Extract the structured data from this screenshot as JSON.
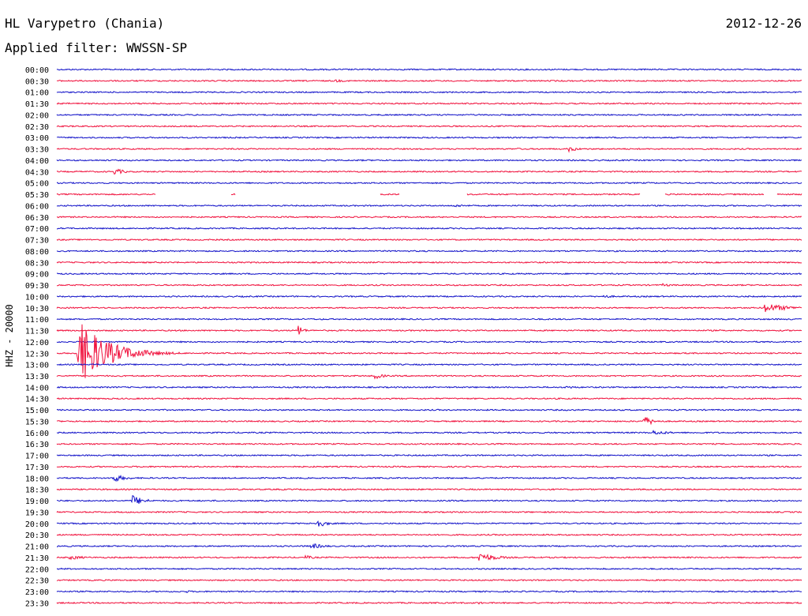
{
  "header": {
    "station": "HL Varypetro (Chania)",
    "date": "2012-12-26",
    "filter": "Applied filter: WWSSN-SP"
  },
  "axis": {
    "ylabel": "HHZ - 20000"
  },
  "colors": {
    "blue": "#1010c8",
    "red": "#f0103c"
  },
  "chart_data": {
    "type": "line",
    "title": "HL Varypetro (Chania)",
    "subtitle": "Applied filter: WWSSN-SP",
    "ylabel": "HHZ - 20000",
    "xlim_minutes": [
      0,
      30
    ],
    "rows": [
      "00:00",
      "00:30",
      "01:00",
      "01:30",
      "02:00",
      "02:30",
      "03:00",
      "03:30",
      "04:00",
      "04:30",
      "05:00",
      "05:30",
      "06:00",
      "06:30",
      "07:00",
      "07:30",
      "08:00",
      "08:30",
      "09:00",
      "09:30",
      "10:00",
      "10:30",
      "11:00",
      "11:30",
      "12:00",
      "12:30",
      "13:00",
      "13:30",
      "14:00",
      "14:30",
      "15:00",
      "15:30",
      "16:00",
      "16:30",
      "17:00",
      "17:30",
      "18:00",
      "18:30",
      "19:00",
      "19:30",
      "20:00",
      "20:30",
      "21:00",
      "21:30",
      "22:00",
      "22:30",
      "23:00",
      "23:30"
    ],
    "events": [
      {
        "row": 1,
        "minute": 11.2,
        "amp": 2,
        "dur": 0.8
      },
      {
        "row": 1,
        "minute": 13.0,
        "amp": 1,
        "dur": 0.3
      },
      {
        "row": 7,
        "minute": 20.6,
        "amp": 4,
        "dur": 0.6
      },
      {
        "row": 7,
        "minute": 18.5,
        "amp": 1.5,
        "dur": 0.5
      },
      {
        "row": 9,
        "minute": 2.3,
        "amp": 5,
        "dur": 0.6
      },
      {
        "row": 12,
        "minute": 16.0,
        "amp": 2,
        "dur": 1.2
      },
      {
        "row": 19,
        "minute": 24.4,
        "amp": 2,
        "dur": 0.8
      },
      {
        "row": 20,
        "minute": 22.0,
        "amp": 2,
        "dur": 1.0
      },
      {
        "row": 21,
        "minute": 28.5,
        "amp": 6,
        "dur": 1.5
      },
      {
        "row": 23,
        "minute": 9.7,
        "amp": 9,
        "dur": 0.3
      },
      {
        "row": 25,
        "minute": 0.8,
        "amp": 45,
        "dur": 1.8
      },
      {
        "row": 27,
        "minute": 12.8,
        "amp": 5,
        "dur": 0.5
      },
      {
        "row": 28,
        "minute": 20.5,
        "amp": 2,
        "dur": 1.0
      },
      {
        "row": 31,
        "minute": 23.6,
        "amp": 8,
        "dur": 0.6
      },
      {
        "row": 32,
        "minute": 24.0,
        "amp": 3,
        "dur": 1.2
      },
      {
        "row": 36,
        "minute": 2.2,
        "amp": 6,
        "dur": 0.8
      },
      {
        "row": 38,
        "minute": 3.0,
        "amp": 8,
        "dur": 0.7
      },
      {
        "row": 40,
        "minute": 10.4,
        "amp": 7,
        "dur": 0.6
      },
      {
        "row": 42,
        "minute": 10.2,
        "amp": 4,
        "dur": 0.9
      },
      {
        "row": 43,
        "minute": 17.0,
        "amp": 7,
        "dur": 1.0
      },
      {
        "row": 43,
        "minute": 10.0,
        "amp": 3,
        "dur": 0.6
      },
      {
        "row": 43,
        "minute": 0.5,
        "amp": 3,
        "dur": 1.0
      },
      {
        "row": 46,
        "minute": 5.2,
        "amp": 2,
        "dur": 0.4
      },
      {
        "row": 47,
        "minute": 17.0,
        "amp": 2,
        "dur": 0.3
      }
    ],
    "gaps": [
      {
        "row": 11,
        "from": 4.0,
        "to": 7.0
      },
      {
        "row": 11,
        "from": 7.2,
        "to": 13.0
      },
      {
        "row": 11,
        "from": 13.8,
        "to": 16.5
      },
      {
        "row": 11,
        "from": 23.5,
        "to": 24.5
      },
      {
        "row": 11,
        "from": 28.5,
        "to": 29.0
      }
    ]
  }
}
